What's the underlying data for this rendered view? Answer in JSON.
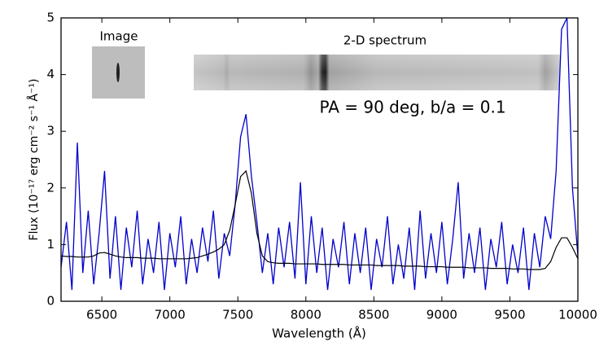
{
  "chart_data": {
    "type": "line",
    "xlabel": "Wavelength (Å)",
    "ylabel": "Flux (10⁻¹⁷ erg cm⁻² s⁻¹ Å⁻¹)",
    "annotations": [
      {
        "text": "Image"
      },
      {
        "text": "2-D spectrum"
      },
      {
        "text": "PA = 90 deg, b/a = 0.1",
        "color": "#008000"
      }
    ],
    "x": [
      6200,
      6240,
      6280,
      6320,
      6360,
      6400,
      6440,
      6480,
      6520,
      6560,
      6600,
      6640,
      6680,
      6720,
      6760,
      6800,
      6840,
      6880,
      6920,
      6960,
      7000,
      7040,
      7080,
      7120,
      7160,
      7200,
      7240,
      7280,
      7320,
      7360,
      7400,
      7440,
      7480,
      7520,
      7560,
      7600,
      7640,
      7680,
      7720,
      7760,
      7800,
      7840,
      7880,
      7920,
      7960,
      8000,
      8040,
      8080,
      8120,
      8160,
      8200,
      8240,
      8280,
      8320,
      8360,
      8400,
      8440,
      8480,
      8520,
      8560,
      8600,
      8640,
      8680,
      8720,
      8760,
      8800,
      8840,
      8880,
      8920,
      8960,
      9000,
      9040,
      9080,
      9120,
      9160,
      9200,
      9240,
      9280,
      9320,
      9360,
      9400,
      9440,
      9480,
      9520,
      9560,
      9600,
      9640,
      9680,
      9720,
      9760,
      9800,
      9840,
      9880,
      9920,
      9960,
      10000
    ],
    "series": [
      {
        "color": "#0000cc",
        "values": [
          0.6,
          1.4,
          0.2,
          2.8,
          0.5,
          1.6,
          0.3,
          1.2,
          2.3,
          0.4,
          1.5,
          0.2,
          1.3,
          0.6,
          1.6,
          0.3,
          1.1,
          0.5,
          1.4,
          0.2,
          1.2,
          0.6,
          1.5,
          0.3,
          1.1,
          0.5,
          1.3,
          0.7,
          1.6,
          0.4,
          1.2,
          0.8,
          1.7,
          2.9,
          3.3,
          2.2,
          1.4,
          0.5,
          1.2,
          0.3,
          1.3,
          0.6,
          1.4,
          0.4,
          2.1,
          0.3,
          1.5,
          0.5,
          1.3,
          0.2,
          1.1,
          0.6,
          1.4,
          0.3,
          1.2,
          0.5,
          1.3,
          0.2,
          1.1,
          0.6,
          1.5,
          0.3,
          1.0,
          0.4,
          1.3,
          0.2,
          1.6,
          0.4,
          1.2,
          0.5,
          1.4,
          0.3,
          1.1,
          2.1,
          0.4,
          1.2,
          0.5,
          1.3,
          0.2,
          1.1,
          0.6,
          1.4,
          0.3,
          1.0,
          0.5,
          1.3,
          0.2,
          1.2,
          0.6,
          1.5,
          1.1,
          2.3,
          4.8,
          5.0,
          2.0,
          0.8
        ]
      },
      {
        "color": "#000000",
        "values": [
          0.8,
          0.79,
          0.79,
          0.78,
          0.78,
          0.78,
          0.8,
          0.85,
          0.86,
          0.83,
          0.8,
          0.78,
          0.77,
          0.77,
          0.77,
          0.76,
          0.76,
          0.76,
          0.75,
          0.75,
          0.75,
          0.75,
          0.75,
          0.75,
          0.76,
          0.77,
          0.8,
          0.83,
          0.87,
          0.92,
          1.0,
          1.25,
          1.7,
          2.2,
          2.3,
          1.9,
          1.2,
          0.8,
          0.7,
          0.68,
          0.67,
          0.67,
          0.67,
          0.66,
          0.66,
          0.66,
          0.66,
          0.66,
          0.65,
          0.65,
          0.65,
          0.65,
          0.65,
          0.64,
          0.64,
          0.64,
          0.64,
          0.64,
          0.63,
          0.63,
          0.63,
          0.63,
          0.63,
          0.62,
          0.62,
          0.62,
          0.62,
          0.61,
          0.61,
          0.61,
          0.61,
          0.6,
          0.6,
          0.6,
          0.6,
          0.59,
          0.59,
          0.59,
          0.59,
          0.58,
          0.58,
          0.58,
          0.58,
          0.57,
          0.57,
          0.57,
          0.56,
          0.56,
          0.56,
          0.58,
          0.7,
          0.95,
          1.12,
          1.12,
          0.95,
          0.75
        ]
      }
    ],
    "xlim": [
      6200,
      10000
    ],
    "xticks": [
      6500,
      7000,
      7500,
      8000,
      8500,
      9000,
      9500,
      10000
    ],
    "ylim": [
      0,
      5
    ],
    "yticks": [
      0,
      1,
      2,
      3,
      4,
      5
    ]
  }
}
